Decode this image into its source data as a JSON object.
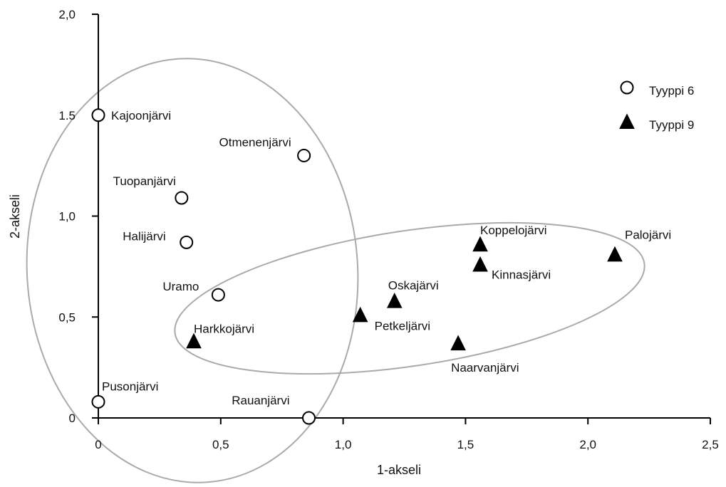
{
  "chart_data": {
    "type": "scatter",
    "xlabel": "1-akseli",
    "ylabel": "2-akseli",
    "xlim": [
      0,
      2.5
    ],
    "ylim": [
      0,
      2.0
    ],
    "xticks": [
      "0",
      "0,5",
      "1,0",
      "1,5",
      "2,0",
      "2,5"
    ],
    "yticks": [
      "0",
      "0,5",
      "1,0",
      "1.5",
      "2,0"
    ],
    "legend_position": "top-right",
    "series": [
      {
        "name": "Tyyppi 6",
        "marker": "open-circle",
        "points": [
          {
            "label": "Kajoonjärvi",
            "x": 0.0,
            "y": 1.5
          },
          {
            "label": "Otmenenjärvi",
            "x": 0.84,
            "y": 1.3
          },
          {
            "label": "Tuopanjärvi",
            "x": 0.34,
            "y": 1.09
          },
          {
            "label": "Halijärvi",
            "x": 0.36,
            "y": 0.87
          },
          {
            "label": "Uramo",
            "x": 0.49,
            "y": 0.61
          },
          {
            "label": "Pusonjärvi",
            "x": 0.0,
            "y": 0.08
          },
          {
            "label": "Rauanjärvi",
            "x": 0.86,
            "y": 0.0
          }
        ]
      },
      {
        "name": "Tyyppi 9",
        "marker": "filled-triangle",
        "points": [
          {
            "label": "Harkkojärvi",
            "x": 0.39,
            "y": 0.38
          },
          {
            "label": "Petkeljärvi",
            "x": 1.07,
            "y": 0.51
          },
          {
            "label": "Oskajärvi",
            "x": 1.21,
            "y": 0.58
          },
          {
            "label": "Naarvanjärvi",
            "x": 1.47,
            "y": 0.37
          },
          {
            "label": "Koppelojärvi",
            "x": 1.56,
            "y": 0.86
          },
          {
            "label": "Kinnasjärvi",
            "x": 1.56,
            "y": 0.76
          },
          {
            "label": "Palojärvi",
            "x": 2.11,
            "y": 0.81
          }
        ]
      }
    ],
    "groupings": [
      {
        "encloses": "Tyyppi 6",
        "shape": "ellipse"
      },
      {
        "encloses": "Tyyppi 9",
        "shape": "ellipse"
      }
    ],
    "colors": {
      "axis": "#000000",
      "marker": "#000000",
      "ellipse": "#aaaaaa"
    }
  }
}
